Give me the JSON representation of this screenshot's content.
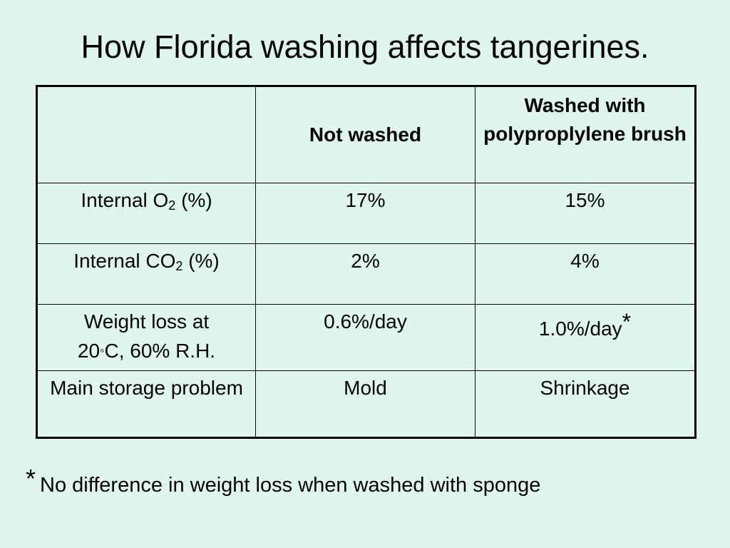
{
  "slide": {
    "title": "How Florida washing affects tangerines."
  },
  "table": {
    "headers": [
      "",
      "Not washed",
      "Washed with polyproplylene brush"
    ],
    "rows": [
      {
        "label_main": "Internal O",
        "label_sub": "2",
        "label_tail": " (%)",
        "col1": "17%",
        "col2": "15%"
      },
      {
        "label_main": "Internal CO",
        "label_sub": "2",
        "label_tail": " (%)",
        "col1": "2%",
        "col2": "4%"
      },
      {
        "label_line1": "Weight loss at",
        "label_pre": "20",
        "label_deg": "◦",
        "label_post": "C, 60% R.H.",
        "col1": "0.6%/day",
        "col2": "1.0%/day",
        "col2_mark": "*"
      },
      {
        "label": "Main storage problem",
        "col1": "Mold",
        "col2": "Shrinkage"
      }
    ]
  },
  "footnote": {
    "marker": "*",
    "text": "No difference in weight loss when washed with sponge"
  }
}
